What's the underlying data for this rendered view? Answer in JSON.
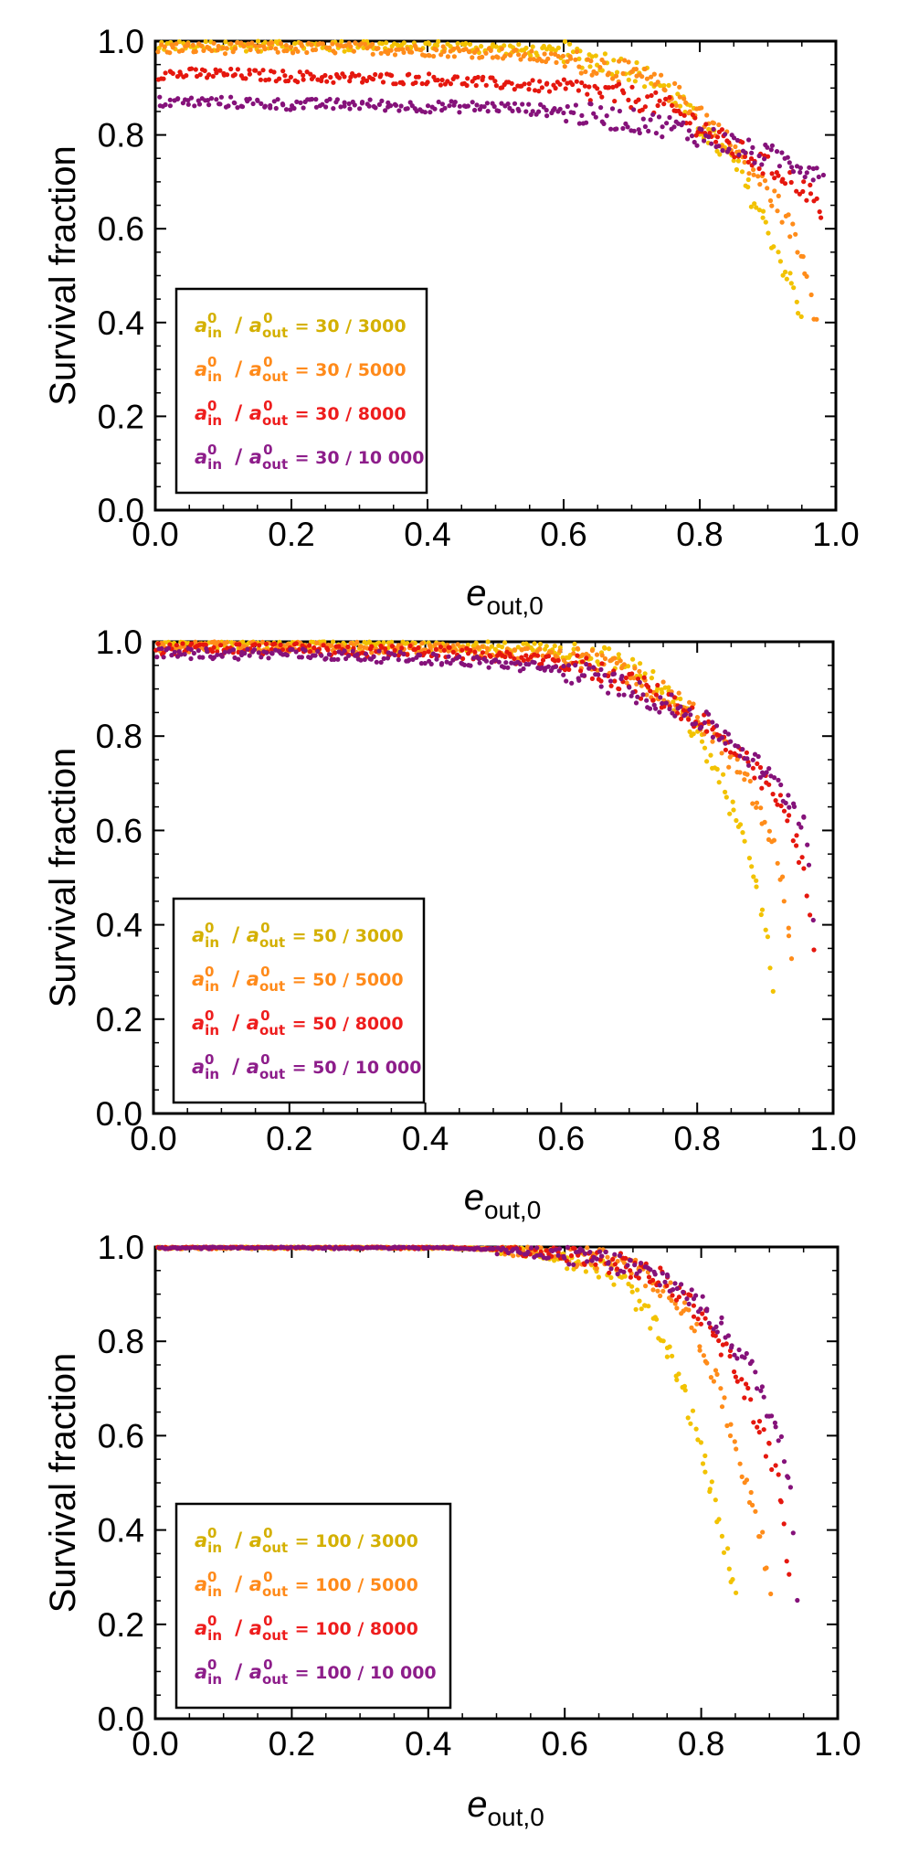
{
  "chart_data": [
    {
      "type": "scatter",
      "panel": "top",
      "xlabel": "e",
      "xlabel_sub": "out,0",
      "ylabel": "Survival fraction",
      "xlim": [
        0.0,
        1.0
      ],
      "ylim": [
        0.0,
        1.0
      ],
      "xticks": [
        "0.0",
        "0.2",
        "0.4",
        "0.6",
        "0.8",
        "1.0"
      ],
      "yticks": [
        "0.0",
        "0.2",
        "0.4",
        "0.6",
        "0.8",
        "1.0"
      ],
      "grid": false,
      "legend_position": "bottom-left",
      "series": [
        {
          "name": "30/3000",
          "color": "#f2c200",
          "label_color": "#d4b000",
          "x": [
            0.0,
            0.1,
            0.2,
            0.3,
            0.4,
            0.5,
            0.55,
            0.6,
            0.65,
            0.7,
            0.75,
            0.8,
            0.85,
            0.88,
            0.9,
            0.92,
            0.94,
            0.95
          ],
          "values": [
            0.99,
            0.99,
            0.99,
            0.99,
            0.99,
            0.985,
            0.98,
            0.975,
            0.96,
            0.94,
            0.9,
            0.82,
            0.74,
            0.66,
            0.6,
            0.53,
            0.46,
            0.39
          ]
        },
        {
          "name": "30/5000",
          "color": "#ff8c1a",
          "label_color": "#ff8a1a",
          "x": [
            0.0,
            0.1,
            0.2,
            0.3,
            0.4,
            0.5,
            0.6,
            0.65,
            0.7,
            0.75,
            0.8,
            0.85,
            0.88,
            0.9,
            0.92,
            0.94,
            0.96,
            0.97
          ],
          "values": [
            0.985,
            0.985,
            0.985,
            0.985,
            0.98,
            0.975,
            0.96,
            0.95,
            0.93,
            0.9,
            0.85,
            0.77,
            0.72,
            0.68,
            0.64,
            0.58,
            0.5,
            0.41
          ]
        },
        {
          "name": "30/8000",
          "color": "#e5170e",
          "label_color": "#ee1d1d",
          "x": [
            0.0,
            0.1,
            0.2,
            0.3,
            0.4,
            0.5,
            0.6,
            0.65,
            0.7,
            0.75,
            0.8,
            0.85,
            0.88,
            0.9,
            0.92,
            0.94,
            0.96,
            0.98
          ],
          "values": [
            0.93,
            0.93,
            0.925,
            0.92,
            0.92,
            0.91,
            0.9,
            0.89,
            0.88,
            0.86,
            0.82,
            0.77,
            0.75,
            0.73,
            0.72,
            0.7,
            0.68,
            0.62
          ]
        },
        {
          "name": "30/10 000",
          "color": "#85127a",
          "label_color": "#8d1d8a",
          "x": [
            0.0,
            0.1,
            0.2,
            0.3,
            0.4,
            0.5,
            0.6,
            0.65,
            0.7,
            0.75,
            0.8,
            0.85,
            0.88,
            0.9,
            0.92,
            0.94,
            0.96,
            0.98
          ],
          "values": [
            0.87,
            0.87,
            0.865,
            0.865,
            0.86,
            0.86,
            0.85,
            0.84,
            0.83,
            0.82,
            0.8,
            0.78,
            0.76,
            0.755,
            0.75,
            0.74,
            0.73,
            0.72
          ]
        }
      ]
    },
    {
      "type": "scatter",
      "panel": "middle",
      "xlabel": "e",
      "xlabel_sub": "out,0",
      "ylabel": "Survival fraction",
      "xlim": [
        0.0,
        1.0
      ],
      "ylim": [
        0.0,
        1.0
      ],
      "xticks": [
        "0.0",
        "0.2",
        "0.4",
        "0.6",
        "0.8",
        "1.0"
      ],
      "yticks": [
        "0.0",
        "0.2",
        "0.4",
        "0.6",
        "0.8",
        "1.0"
      ],
      "grid": false,
      "legend_position": "bottom-left",
      "series": [
        {
          "name": "50/3000",
          "color": "#f2c200",
          "label_color": "#d4b000",
          "x": [
            0.0,
            0.1,
            0.2,
            0.3,
            0.4,
            0.5,
            0.6,
            0.65,
            0.7,
            0.73,
            0.76,
            0.78,
            0.8,
            0.82,
            0.84,
            0.86,
            0.88,
            0.9,
            0.91
          ],
          "values": [
            0.995,
            0.995,
            0.995,
            0.995,
            0.99,
            0.99,
            0.985,
            0.975,
            0.95,
            0.92,
            0.88,
            0.85,
            0.8,
            0.75,
            0.69,
            0.61,
            0.52,
            0.41,
            0.28
          ]
        },
        {
          "name": "50/5000",
          "color": "#ff8c1a",
          "label_color": "#ff8a1a",
          "x": [
            0.0,
            0.1,
            0.2,
            0.3,
            0.4,
            0.5,
            0.6,
            0.65,
            0.7,
            0.75,
            0.8,
            0.83,
            0.86,
            0.88,
            0.9,
            0.92,
            0.93,
            0.94
          ],
          "values": [
            0.99,
            0.99,
            0.99,
            0.99,
            0.985,
            0.98,
            0.97,
            0.96,
            0.93,
            0.89,
            0.84,
            0.79,
            0.73,
            0.68,
            0.61,
            0.53,
            0.45,
            0.32
          ]
        },
        {
          "name": "50/8000",
          "color": "#e5170e",
          "label_color": "#ee1d1d",
          "x": [
            0.0,
            0.1,
            0.2,
            0.3,
            0.4,
            0.5,
            0.6,
            0.65,
            0.7,
            0.75,
            0.8,
            0.83,
            0.86,
            0.88,
            0.9,
            0.92,
            0.94,
            0.96,
            0.97
          ],
          "values": [
            0.985,
            0.985,
            0.985,
            0.98,
            0.98,
            0.97,
            0.955,
            0.94,
            0.915,
            0.88,
            0.84,
            0.8,
            0.76,
            0.73,
            0.7,
            0.66,
            0.6,
            0.5,
            0.37
          ]
        },
        {
          "name": "50/10 000",
          "color": "#85127a",
          "label_color": "#8d1d8a",
          "x": [
            0.0,
            0.1,
            0.2,
            0.3,
            0.4,
            0.5,
            0.6,
            0.65,
            0.7,
            0.75,
            0.8,
            0.83,
            0.86,
            0.88,
            0.9,
            0.92,
            0.94,
            0.96,
            0.97
          ],
          "values": [
            0.975,
            0.975,
            0.975,
            0.97,
            0.965,
            0.955,
            0.94,
            0.925,
            0.9,
            0.87,
            0.84,
            0.81,
            0.78,
            0.75,
            0.72,
            0.69,
            0.66,
            0.61,
            0.42
          ]
        }
      ]
    },
    {
      "type": "scatter",
      "panel": "bottom",
      "xlabel": "e",
      "xlabel_sub": "out,0",
      "ylabel": "Survival fraction",
      "xlim": [
        0.0,
        1.0
      ],
      "ylim": [
        0.0,
        1.0
      ],
      "xticks": [
        "0.0",
        "0.2",
        "0.4",
        "0.6",
        "0.8",
        "1.0"
      ],
      "yticks": [
        "0.0",
        "0.2",
        "0.4",
        "0.6",
        "0.8",
        "1.0"
      ],
      "grid": false,
      "legend_position": "bottom-left",
      "series": [
        {
          "name": "100/3000",
          "color": "#f2c200",
          "label_color": "#d4b000",
          "x": [
            0.0,
            0.1,
            0.2,
            0.3,
            0.4,
            0.5,
            0.55,
            0.6,
            0.63,
            0.66,
            0.69,
            0.72,
            0.75,
            0.77,
            0.79,
            0.81,
            0.83,
            0.84,
            0.85
          ],
          "values": [
            1.0,
            1.0,
            1.0,
            1.0,
            1.0,
            0.995,
            0.99,
            0.98,
            0.97,
            0.95,
            0.92,
            0.86,
            0.78,
            0.71,
            0.62,
            0.51,
            0.4,
            0.33,
            0.27
          ]
        },
        {
          "name": "100/5000",
          "color": "#ff8c1a",
          "label_color": "#ff8a1a",
          "x": [
            0.0,
            0.1,
            0.2,
            0.3,
            0.4,
            0.5,
            0.6,
            0.65,
            0.7,
            0.74,
            0.77,
            0.8,
            0.82,
            0.84,
            0.86,
            0.88,
            0.89,
            0.9
          ],
          "values": [
            1.0,
            1.0,
            1.0,
            1.0,
            1.0,
            0.995,
            0.985,
            0.975,
            0.955,
            0.92,
            0.88,
            0.8,
            0.72,
            0.63,
            0.53,
            0.44,
            0.37,
            0.25
          ]
        },
        {
          "name": "100/8000",
          "color": "#e5170e",
          "label_color": "#ee1d1d",
          "x": [
            0.0,
            0.1,
            0.2,
            0.3,
            0.4,
            0.5,
            0.6,
            0.65,
            0.7,
            0.75,
            0.78,
            0.81,
            0.84,
            0.86,
            0.88,
            0.9,
            0.92,
            0.93
          ],
          "values": [
            1.0,
            1.0,
            1.0,
            1.0,
            1.0,
            0.995,
            0.985,
            0.975,
            0.955,
            0.925,
            0.89,
            0.84,
            0.77,
            0.71,
            0.64,
            0.56,
            0.46,
            0.26
          ]
        },
        {
          "name": "100/10 000",
          "color": "#85127a",
          "label_color": "#8d1d8a",
          "x": [
            0.0,
            0.1,
            0.2,
            0.3,
            0.4,
            0.5,
            0.6,
            0.65,
            0.7,
            0.75,
            0.78,
            0.81,
            0.84,
            0.87,
            0.89,
            0.91,
            0.93,
            0.94
          ],
          "values": [
            1.0,
            1.0,
            1.0,
            1.0,
            1.0,
            0.995,
            0.985,
            0.975,
            0.955,
            0.93,
            0.9,
            0.86,
            0.81,
            0.75,
            0.69,
            0.61,
            0.52,
            0.27
          ]
        }
      ]
    }
  ]
}
